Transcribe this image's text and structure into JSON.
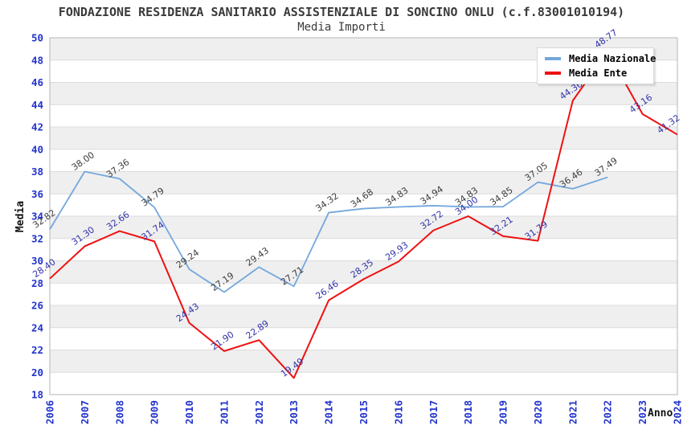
{
  "header": {
    "title": "FONDAZIONE RESIDENZA SANITARIO ASSISTENZIALE DI SONCINO ONLU (c.f.83001010194)",
    "subtitle": "Media Importi"
  },
  "chart_data": {
    "type": "line",
    "title": "FONDAZIONE RESIDENZA SANITARIO ASSISTENZIALE DI SONCINO ONLU (c.f.83001010194)",
    "subtitle": "Media Importi",
    "xlabel": "Anno",
    "ylabel": "Media",
    "categories": [
      "2006",
      "2007",
      "2008",
      "2009",
      "2010",
      "2011",
      "2012",
      "2013",
      "2014",
      "2015",
      "2016",
      "2017",
      "2018",
      "2019",
      "2020",
      "2021",
      "2022",
      "2023",
      "2024"
    ],
    "series": [
      {
        "name": "Media Nazionale",
        "color": "#74a7dc",
        "label_color": "#3d3d3d",
        "line_width": 1.8,
        "values": [
          32.82,
          38.0,
          37.36,
          34.79,
          29.24,
          27.19,
          29.43,
          27.71,
          34.32,
          34.68,
          34.83,
          34.94,
          34.83,
          34.85,
          37.05,
          36.46,
          37.49,
          null,
          null
        ]
      },
      {
        "name": "Media Ente",
        "color": "#ee1111",
        "label_color": "#3333aa",
        "line_width": 2,
        "values": [
          28.4,
          31.3,
          32.66,
          31.74,
          24.43,
          21.9,
          22.89,
          19.49,
          26.46,
          28.35,
          29.93,
          32.72,
          34.0,
          32.21,
          31.79,
          44.36,
          48.77,
          43.16,
          41.32
        ]
      }
    ],
    "ylim": [
      18,
      50
    ],
    "y_step": 2,
    "grid": true,
    "band_colors": [
      "#efefef",
      "#ffffff"
    ],
    "tick_color": "#2233cc",
    "gridline_color": "#dcdcdc",
    "plot_border_color": "#b6b6b6",
    "legend_position": "top-right"
  }
}
